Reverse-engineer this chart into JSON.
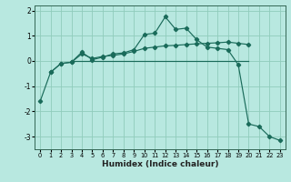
{
  "xlabel": "Humidex (Indice chaleur)",
  "background_color": "#b8e8e0",
  "grid_color": "#90ccbb",
  "line_color": "#1a6b5a",
  "xlim": [
    -0.5,
    23.5
  ],
  "ylim": [
    -3.5,
    2.2
  ],
  "yticks": [
    -3,
    -2,
    -1,
    0,
    1,
    2
  ],
  "xticks": [
    0,
    1,
    2,
    3,
    4,
    5,
    6,
    7,
    8,
    9,
    10,
    11,
    12,
    13,
    14,
    15,
    16,
    17,
    18,
    19,
    20,
    21,
    22,
    23
  ],
  "series": [
    {
      "x": [
        0,
        1,
        2,
        3,
        4,
        5,
        6,
        7,
        8,
        9,
        10,
        11,
        12,
        13,
        14,
        15,
        16,
        17,
        18,
        19,
        20,
        21,
        22,
        23
      ],
      "y": [
        -1.6,
        -0.45,
        -0.1,
        -0.05,
        0.35,
        0.05,
        0.15,
        0.28,
        0.32,
        0.45,
        1.05,
        1.1,
        1.75,
        1.25,
        1.3,
        0.85,
        0.55,
        0.5,
        0.45,
        -0.15,
        -2.5,
        -2.6,
        -3.0,
        -3.15
      ]
    },
    {
      "x": [
        1,
        2,
        3,
        4,
        5,
        6,
        7,
        8,
        9,
        10,
        11,
        12,
        13,
        14,
        15,
        16,
        17,
        18,
        19,
        20
      ],
      "y": [
        -0.45,
        -0.1,
        -0.05,
        0.28,
        0.1,
        0.18,
        0.22,
        0.28,
        0.38,
        0.5,
        0.55,
        0.6,
        0.62,
        0.65,
        0.68,
        0.7,
        0.72,
        0.75,
        0.7,
        0.65
      ]
    },
    {
      "x": [
        3,
        20
      ],
      "y": [
        0.0,
        0.0
      ]
    }
  ]
}
